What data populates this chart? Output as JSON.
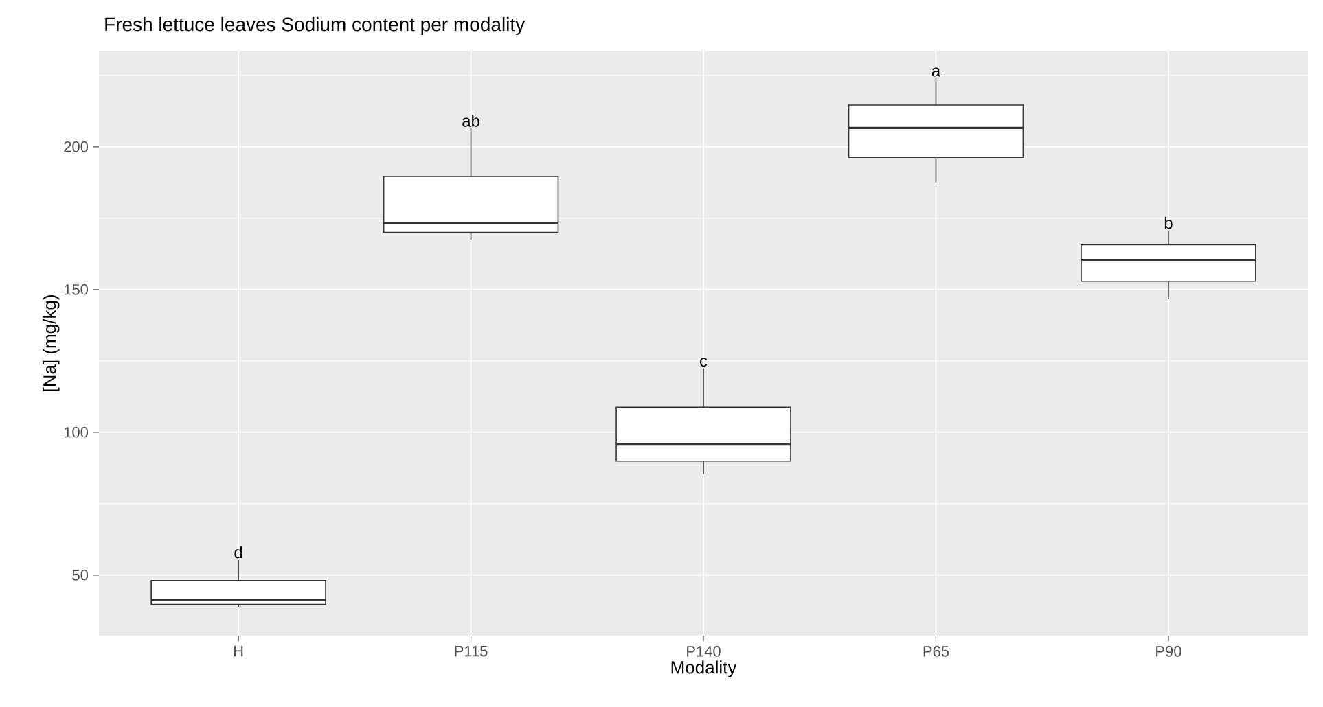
{
  "chart_data": {
    "type": "box",
    "title": "Fresh lettuce leaves Sodium content per modality",
    "xlabel": "Modality",
    "ylabel": "[Na] (mg/kg)",
    "categories": [
      "H",
      "P115",
      "P140",
      "P65",
      "P90"
    ],
    "boxes": [
      {
        "low": 38.9,
        "q1": 39.7,
        "median": 41.3,
        "q3": 48.1,
        "high": 55.3
      },
      {
        "low": 167.5,
        "q1": 170.0,
        "median": 173.2,
        "q3": 189.6,
        "high": 206.4
      },
      {
        "low": 85.4,
        "q1": 89.9,
        "median": 95.7,
        "q3": 108.8,
        "high": 122.4
      },
      {
        "low": 187.5,
        "q1": 196.3,
        "median": 206.6,
        "q3": 214.6,
        "high": 224.0
      },
      {
        "low": 146.6,
        "q1": 152.9,
        "median": 160.4,
        "q3": 165.7,
        "high": 170.7
      }
    ],
    "ylim": [
      28.8,
      233.6
    ],
    "yticks": [
      50,
      100,
      150,
      200
    ],
    "grid": true,
    "annotations": [
      "d",
      "ab",
      "c",
      "a",
      "b"
    ]
  }
}
